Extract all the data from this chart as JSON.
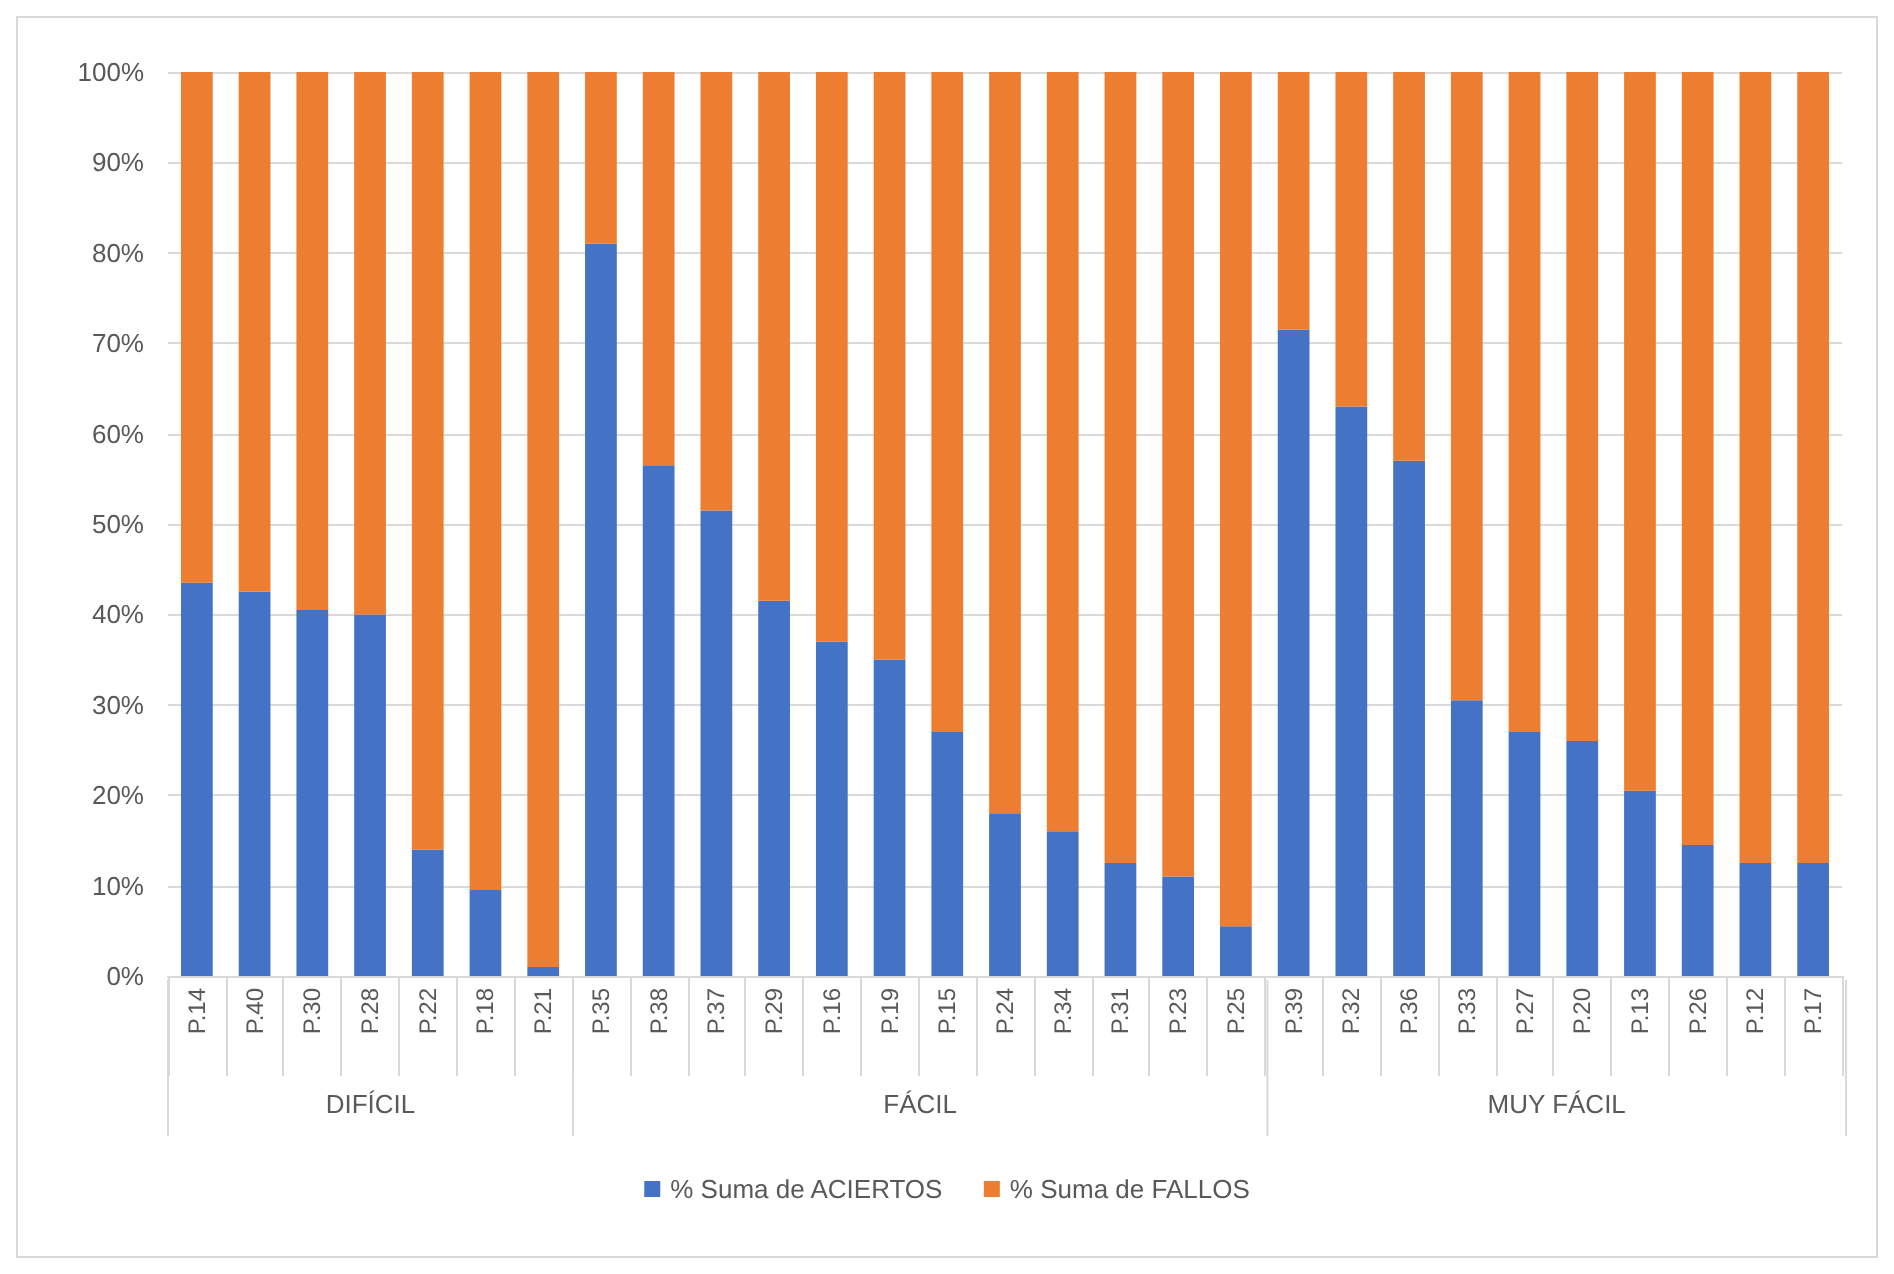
{
  "chart_data": {
    "type": "bar",
    "stacked": true,
    "categories": [
      "P.14",
      "P.40",
      "P.30",
      "P.28",
      "P.22",
      "P.18",
      "P.21",
      "P.35",
      "P.38",
      "P.37",
      "P.29",
      "P.16",
      "P.19",
      "P.15",
      "P.24",
      "P.34",
      "P.31",
      "P.23",
      "P.25",
      "P.39",
      "P.32",
      "P.36",
      "P.33",
      "P.27",
      "P.20",
      "P.13",
      "P.26",
      "P.12",
      "P.17"
    ],
    "series": [
      {
        "name": "% Suma de ACIERTOS",
        "color": "#4472c4",
        "values": [
          43.5,
          42.5,
          40.5,
          40,
          14,
          9.5,
          1,
          81,
          56.5,
          51.5,
          41.5,
          37,
          35,
          27,
          18,
          16,
          12.5,
          11,
          5.5,
          71.5,
          63,
          57,
          30.5,
          27,
          26,
          20.5,
          14.5,
          12.5,
          12.5
        ]
      },
      {
        "name": "% Suma de FALLOS",
        "color": "#ed7d31",
        "values": [
          56.5,
          57.5,
          59.5,
          60,
          86,
          90.5,
          99,
          19,
          43.5,
          48.5,
          58.5,
          63,
          65,
          73,
          82,
          84,
          87.5,
          89,
          94.5,
          28.5,
          37,
          43,
          69.5,
          73,
          74,
          79.5,
          85.5,
          87.5,
          87.5
        ]
      }
    ],
    "ylim": [
      0,
      100
    ],
    "yticks": [
      {
        "value": 0,
        "label": "0%"
      },
      {
        "value": 10,
        "label": "10%"
      },
      {
        "value": 20,
        "label": "20%"
      },
      {
        "value": 30,
        "label": "30%"
      },
      {
        "value": 40,
        "label": "40%"
      },
      {
        "value": 50,
        "label": "50%"
      },
      {
        "value": 60,
        "label": "60%"
      },
      {
        "value": 70,
        "label": "70%"
      },
      {
        "value": 80,
        "label": "80%"
      },
      {
        "value": 90,
        "label": "90%"
      },
      {
        "value": 100,
        "label": "100%"
      }
    ],
    "grid": "y",
    "legend": "bottom",
    "annotations": [
      "DIFÍCIL",
      "FÁCIL",
      "MUY FÁCIL"
    ]
  }
}
